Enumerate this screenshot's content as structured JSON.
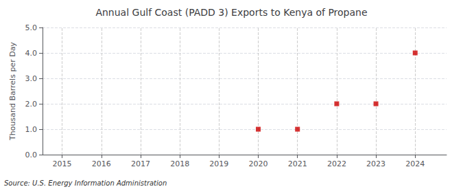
{
  "chart_data": {
    "type": "scatter",
    "title": "Annual Gulf Coast (PADD 3) Exports to Kenya of Propane",
    "ylabel": "Thousand Barrels per Day",
    "annotations": [
      "Source: U.S. Energy Information Administration"
    ],
    "x": [
      2020,
      2021,
      2022,
      2023,
      2024
    ],
    "values": [
      1,
      1,
      2,
      2,
      4
    ],
    "color": "#cc0000",
    "marker": "square",
    "xlim": [
      2014.5,
      2024.8
    ],
    "xticks": [
      2015,
      2016,
      2017,
      2018,
      2019,
      2020,
      2021,
      2022,
      2023,
      2024
    ],
    "ylim": [
      0,
      5.0
    ],
    "yticks": [
      {
        "value": 0,
        "label": "0.0"
      },
      {
        "value": 1,
        "label": "1.0"
      },
      {
        "value": 2,
        "label": "2.0"
      },
      {
        "value": 3,
        "label": "3.0"
      },
      {
        "value": 4,
        "label": "4.0"
      },
      {
        "value": 5,
        "label": "5.0"
      }
    ],
    "grid": true
  }
}
